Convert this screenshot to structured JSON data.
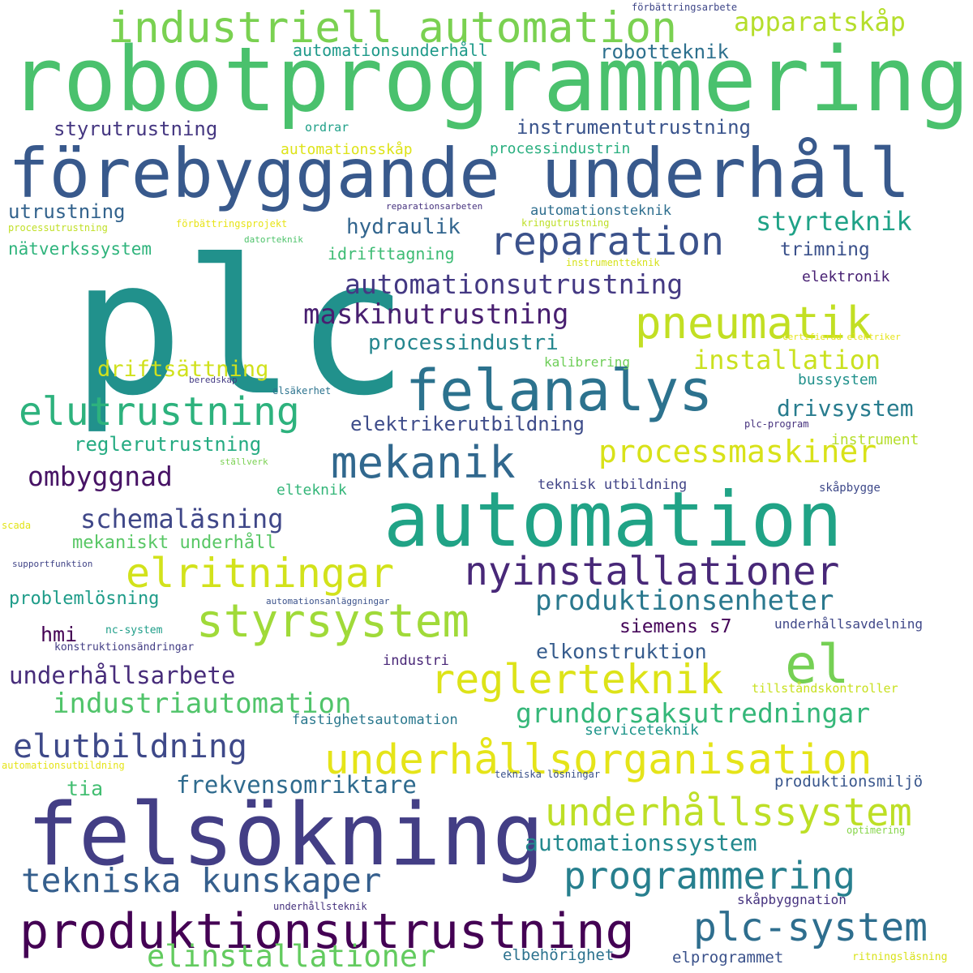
{
  "words": [
    {
      "text": "plc",
      "color": "#21918c"
    },
    {
      "text": "robotprogrammering",
      "color": "#4ac16d"
    },
    {
      "text": "förebyggande underhåll",
      "color": "#38598c"
    },
    {
      "text": "automation",
      "color": "#20a386"
    },
    {
      "text": "felsökning",
      "color": "#433e85"
    },
    {
      "text": "felanalys",
      "color": "#2c728e"
    },
    {
      "text": "produktionsutrustning",
      "color": "#440154"
    },
    {
      "text": "industriell automation",
      "color": "#7ad151"
    },
    {
      "text": "styrsystem",
      "color": "#a0da39"
    },
    {
      "text": "underhållsorganisation",
      "color": "#e5e419"
    },
    {
      "text": "reparation",
      "color": "#3b528b"
    },
    {
      "text": "el",
      "color": "#75d054"
    },
    {
      "text": "pneumatik",
      "color": "#c2df23"
    },
    {
      "text": "elutrustning",
      "color": "#2db27d"
    },
    {
      "text": "mekanik",
      "color": "#31688e"
    },
    {
      "text": "nyinstallationer",
      "color": "#482878"
    },
    {
      "text": "elritningar",
      "color": "#d2e21b"
    },
    {
      "text": "underhållssystem",
      "color": "#bddf26"
    },
    {
      "text": "tekniska kunskaper",
      "color": "#355f8d"
    },
    {
      "text": "programmering",
      "color": "#277f8e"
    },
    {
      "text": "plc-system",
      "color": "#2e6e8e"
    },
    {
      "text": "reglerteknik",
      "color": "#dde318"
    },
    {
      "text": "elutbildning",
      "color": "#3e4989"
    },
    {
      "text": "automationsutrustning",
      "color": "#443983"
    },
    {
      "text": "maskinutrustning",
      "color": "#481f70"
    },
    {
      "text": "styrteknik",
      "color": "#1fa287"
    },
    {
      "text": "apparatskåp",
      "color": "#b5de2b"
    },
    {
      "text": "installation",
      "color": "#cae11f"
    },
    {
      "text": "processmaskiner",
      "color": "#d8e219"
    },
    {
      "text": "produktionsenheter",
      "color": "#2a788e"
    },
    {
      "text": "grundorsaksutredningar",
      "color": "#35b779"
    },
    {
      "text": "elinstallationer",
      "color": "#63cb5f"
    },
    {
      "text": "industriautomation",
      "color": "#50c46a"
    },
    {
      "text": "underhållsarbete",
      "color": "#472c7a"
    },
    {
      "text": "schemaläsning",
      "color": "#3f4788"
    },
    {
      "text": "ombyggnad",
      "color": "#471365"
    },
    {
      "text": "driftsättning",
      "color": "#d0e11c"
    },
    {
      "text": "reglerutrustning",
      "color": "#25ab82"
    },
    {
      "text": "frekvensomriktare",
      "color": "#2f6b8e"
    },
    {
      "text": "automationssystem",
      "color": "#23898e"
    },
    {
      "text": "drivsystem",
      "color": "#287c8e"
    },
    {
      "text": "elektrikerutbildning",
      "color": "#3e4c8a"
    },
    {
      "text": "processindustri",
      "color": "#24868e"
    },
    {
      "text": "hydraulik",
      "color": "#32658e"
    },
    {
      "text": "robotteknik",
      "color": "#2d708e"
    },
    {
      "text": "styrutrustning",
      "color": "#453781"
    },
    {
      "text": "instrumentutrustning",
      "color": "#3a548c"
    },
    {
      "text": "utrustning",
      "color": "#33638d"
    },
    {
      "text": "automationsunderhåll",
      "color": "#1f9a8a"
    },
    {
      "text": "elkonstruktion",
      "color": "#365c8d"
    },
    {
      "text": "siemens s7",
      "color": "#450559"
    },
    {
      "text": "hmi",
      "color": "#440154"
    },
    {
      "text": "problemlösning",
      "color": "#1e9c89"
    },
    {
      "text": "mekaniskt underhåll",
      "color": "#58c765"
    },
    {
      "text": "trimning",
      "color": "#3b518b"
    },
    {
      "text": "idrifttagning",
      "color": "#3dbc74"
    },
    {
      "text": "nätverkssystem",
      "color": "#2fb47c"
    },
    {
      "text": "tia",
      "color": "#42be71"
    },
    {
      "text": "elektronik",
      "color": "#482173"
    },
    {
      "text": "automationsskåp",
      "color": "#dde318"
    },
    {
      "text": "processindustrin",
      "color": "#29af7f"
    },
    {
      "text": "automationsteknik",
      "color": "#2e6e8e"
    },
    {
      "text": "bussystem",
      "color": "#21918c"
    },
    {
      "text": "instrument",
      "color": "#b5de2b"
    },
    {
      "text": "elteknik",
      "color": "#34b679"
    },
    {
      "text": "teknisk utbildning",
      "color": "#414487"
    },
    {
      "text": "serviceteknik",
      "color": "#1f958b"
    },
    {
      "text": "fastighetsautomation",
      "color": "#2a788e"
    },
    {
      "text": "industri",
      "color": "#482677"
    },
    {
      "text": "produktionsmiljö",
      "color": "#39568c"
    },
    {
      "text": "skåpbyggnation",
      "color": "#46337f"
    },
    {
      "text": "elbehörighet",
      "color": "#2c728e"
    },
    {
      "text": "elprogrammet",
      "color": "#3b528b"
    },
    {
      "text": "underhållsavdelning",
      "color": "#3f4788"
    },
    {
      "text": "tillståndskontroller",
      "color": "#c8e020"
    },
    {
      "text": "ordrar",
      "color": "#1fa088"
    },
    {
      "text": "kalibrering",
      "color": "#6ece58"
    },
    {
      "text": "skåpbygge",
      "color": "#3e4989"
    },
    {
      "text": "förbättringsarbete",
      "color": "#3f4788"
    },
    {
      "text": "reparationsarbeten",
      "color": "#46327e"
    },
    {
      "text": "förbättringsprojekt",
      "color": "#e7e419"
    },
    {
      "text": "kringutrustning",
      "color": "#bddf26"
    },
    {
      "text": "instrumentteknik",
      "color": "#d5e21a"
    },
    {
      "text": "processutrustning",
      "color": "#c0df25"
    },
    {
      "text": "datorteknik",
      "color": "#4ec36b"
    },
    {
      "text": "certifierad elektriker",
      "color": "#e5e419"
    },
    {
      "text": "beredskap",
      "color": "#443b84"
    },
    {
      "text": "elsäkerhet",
      "color": "#2c738e"
    },
    {
      "text": "plc-program",
      "color": "#46327e"
    },
    {
      "text": "ställverk",
      "color": "#7ad151"
    },
    {
      "text": "scada",
      "color": "#e2e418"
    },
    {
      "text": "supportfunktion",
      "color": "#414487"
    },
    {
      "text": "automationsanläggningar",
      "color": "#3b528b"
    },
    {
      "text": "nc-system",
      "color": "#1f9e89"
    },
    {
      "text": "konstruktionsändringar",
      "color": "#433e85"
    },
    {
      "text": "automationsutbildning",
      "color": "#e5e419"
    },
    {
      "text": "tekniska lösningar",
      "color": "#3b528b"
    },
    {
      "text": "optimering",
      "color": "#86d549"
    },
    {
      "text": "underhållsteknik",
      "color": "#46327e"
    },
    {
      "text": "ritningsläsning",
      "color": "#d8e219"
    }
  ]
}
